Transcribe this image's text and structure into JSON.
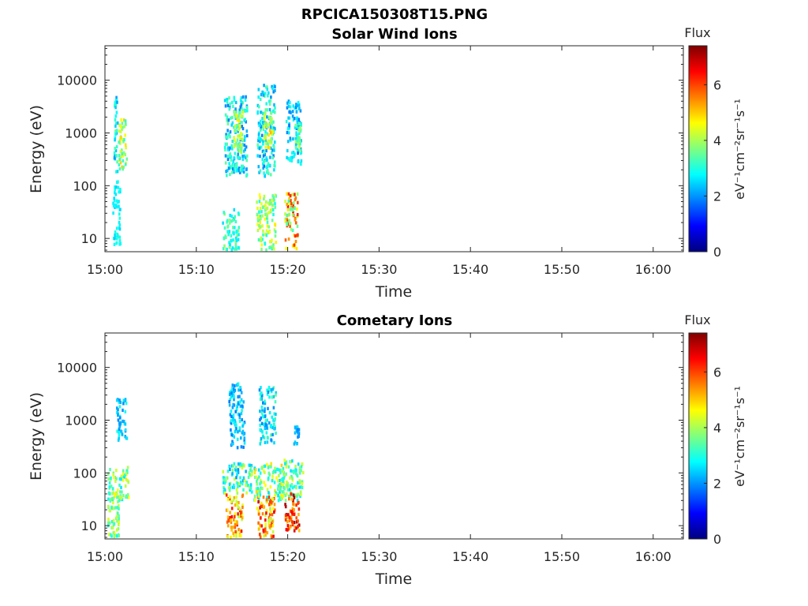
{
  "figure_title": "RPCICA150308T15.PNG",
  "colors": {
    "axis": "#262626",
    "colormap": [
      "#00007f",
      "#0000ff",
      "#007fff",
      "#00ffff",
      "#7fff7f",
      "#ffff00",
      "#ff7f00",
      "#ff0000",
      "#7f0000"
    ]
  },
  "chart_data": [
    {
      "type": "heatmap",
      "title": "Solar Wind Ions",
      "xlabel": "Time",
      "ylabel": "Energy (eV)",
      "x_ticks": [
        "15:00",
        "15:10",
        "15:20",
        "15:30",
        "15:40",
        "15:50",
        "16:00"
      ],
      "x_tick_minutes": [
        0,
        10,
        20,
        30,
        40,
        50,
        60
      ],
      "xlim_minutes": [
        0,
        63.3
      ],
      "y_scale": "log",
      "ylim": [
        5.6,
        45000
      ],
      "y_ticks": [
        10,
        100,
        1000,
        10000
      ],
      "y_tick_labels": [
        "10",
        "100",
        "1000",
        "10000"
      ],
      "colorbar": {
        "title": "Flux",
        "label": "eV⁻¹cm⁻²sr⁻¹s⁻¹",
        "range": [
          0,
          7.4
        ],
        "ticks": [
          0,
          2,
          4,
          6
        ],
        "tick_labels": [
          "0",
          "2",
          "4",
          "6"
        ]
      },
      "clusters": [
        {
          "t": [
            0.9,
            1.3
          ],
          "e": [
            180,
            5000
          ],
          "v": [
            2.0,
            3.5
          ]
        },
        {
          "t": [
            1.4,
            2.3
          ],
          "e": [
            200,
            1800
          ],
          "v": [
            3.0,
            5.0
          ]
        },
        {
          "t": [
            0.8,
            1.6
          ],
          "e": [
            7,
            120
          ],
          "v": [
            2.4,
            3.0
          ]
        },
        {
          "t": [
            13.0,
            15.5
          ],
          "e": [
            150,
            5000
          ],
          "v": [
            1.8,
            3.5
          ]
        },
        {
          "t": [
            14.0,
            15.0
          ],
          "e": [
            400,
            2500
          ],
          "v": [
            3.5,
            5.0
          ]
        },
        {
          "t": [
            12.8,
            14.6
          ],
          "e": [
            6,
            35
          ],
          "v": [
            2.5,
            4.0
          ]
        },
        {
          "t": [
            16.6,
            18.5
          ],
          "e": [
            150,
            8000
          ],
          "v": [
            1.8,
            3.5
          ]
        },
        {
          "t": [
            17.3,
            18.3
          ],
          "e": [
            500,
            2500
          ],
          "v": [
            3.5,
            5.2
          ]
        },
        {
          "t": [
            16.5,
            18.6
          ],
          "e": [
            6,
            70
          ],
          "v": [
            2.8,
            4.8
          ]
        },
        {
          "t": [
            19.7,
            21.4
          ],
          "e": [
            250,
            4000
          ],
          "v": [
            1.8,
            3.0
          ]
        },
        {
          "t": [
            20.7,
            21.3
          ],
          "e": [
            400,
            1500
          ],
          "v": [
            3.0,
            4.5
          ]
        },
        {
          "t": [
            19.6,
            21.0
          ],
          "e": [
            6,
            70
          ],
          "v": [
            3.0,
            6.5
          ]
        }
      ]
    },
    {
      "type": "heatmap",
      "title": "Cometary Ions",
      "xlabel": "Time",
      "ylabel": "Energy (eV)",
      "x_ticks": [
        "15:00",
        "15:10",
        "15:20",
        "15:30",
        "15:40",
        "15:50",
        "16:00"
      ],
      "x_tick_minutes": [
        0,
        10,
        20,
        30,
        40,
        50,
        60
      ],
      "xlim_minutes": [
        0,
        63.3
      ],
      "y_scale": "log",
      "ylim": [
        5.6,
        45000
      ],
      "y_ticks": [
        10,
        100,
        1000,
        10000
      ],
      "y_tick_labels": [
        "10",
        "100",
        "1000",
        "10000"
      ],
      "colorbar": {
        "title": "Flux",
        "label": "eV⁻¹cm⁻²sr⁻¹s⁻¹",
        "range": [
          0,
          7.4
        ],
        "ticks": [
          0,
          2,
          4,
          6
        ],
        "tick_labels": [
          "0",
          "2",
          "4",
          "6"
        ]
      },
      "clusters": [
        {
          "t": [
            1.2,
            2.3
          ],
          "e": [
            400,
            2500
          ],
          "v": [
            1.8,
            3.0
          ]
        },
        {
          "t": [
            0.2,
            2.5
          ],
          "e": [
            30,
            130
          ],
          "v": [
            2.5,
            4.8
          ]
        },
        {
          "t": [
            0.2,
            1.5
          ],
          "e": [
            6,
            30
          ],
          "v": [
            2.8,
            4.5
          ]
        },
        {
          "t": [
            13.5,
            15.2
          ],
          "e": [
            300,
            5000
          ],
          "v": [
            1.8,
            3.0
          ]
        },
        {
          "t": [
            12.8,
            16.0
          ],
          "e": [
            40,
            150
          ],
          "v": [
            2.0,
            4.5
          ]
        },
        {
          "t": [
            13.2,
            15.0
          ],
          "e": [
            6,
            40
          ],
          "v": [
            4.0,
            6.5
          ]
        },
        {
          "t": [
            16.8,
            18.6
          ],
          "e": [
            350,
            4500
          ],
          "v": [
            1.8,
            3.5
          ]
        },
        {
          "t": [
            16.2,
            19.5
          ],
          "e": [
            30,
            150
          ],
          "v": [
            2.5,
            5.0
          ]
        },
        {
          "t": [
            16.5,
            18.5
          ],
          "e": [
            6,
            40
          ],
          "v": [
            4.0,
            6.8
          ]
        },
        {
          "t": [
            19.3,
            21.6
          ],
          "e": [
            30,
            180
          ],
          "v": [
            2.5,
            4.5
          ]
        },
        {
          "t": [
            19.6,
            21.2
          ],
          "e": [
            8,
            40
          ],
          "v": [
            5.0,
            7.2
          ]
        },
        {
          "t": [
            20.6,
            21.2
          ],
          "e": [
            350,
            800
          ],
          "v": [
            1.8,
            2.8
          ]
        }
      ]
    }
  ]
}
